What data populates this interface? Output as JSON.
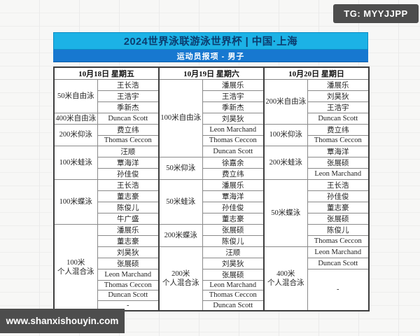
{
  "badge": {
    "text": "TG: MYYJJPP"
  },
  "watermark": {
    "text": "www.shanxishouyin.com"
  },
  "header": {
    "title": "2024世界泳联游泳世界杯 | 中国·上海",
    "subtitle": "运动员报项 - 男子"
  },
  "colors": {
    "title_bg": "#1cb2e6",
    "subtitle_bg": "#1778d0",
    "title_text": "#0c3c6e",
    "badge_bg": "#4d4d4d",
    "outer_border": "#3e3e3e",
    "cell_border": "#8a8a8a"
  },
  "table": {
    "days": [
      {
        "label": "10月18日 星期五",
        "events": [
          {
            "name": "50米自由泳",
            "swimmers": [
              {
                "name": "王长浩"
              },
              {
                "name": "王浩宇"
              },
              {
                "name": "季新杰"
              }
            ]
          },
          {
            "name": "400米自由泳",
            "swimmers": [
              {
                "name": "Duncan Scott"
              }
            ]
          },
          {
            "name": "200米仰泳",
            "swimmers": [
              {
                "name": "费立纬"
              },
              {
                "name": "Thomas Ceccon"
              }
            ]
          },
          {
            "name": "100米蛙泳",
            "swimmers": [
              {
                "name": "汪顺"
              },
              {
                "name": "覃海洋"
              },
              {
                "name": "孙佳俊"
              }
            ]
          },
          {
            "name": "100米蝶泳",
            "swimmers": [
              {
                "name": "王长浩"
              },
              {
                "name": "董志豪"
              },
              {
                "name": "陈俊儿"
              },
              {
                "name": "牛广盛"
              }
            ]
          },
          {
            "name": "100米\n个人混合泳",
            "swimmers": [
              {
                "name": "潘展乐"
              },
              {
                "name": "董志豪"
              },
              {
                "name": "刘昊狄"
              },
              {
                "name": "张展硕"
              },
              {
                "name": "Leon Marchand"
              },
              {
                "name": "Thomas Ceccon"
              },
              {
                "name": "Duncan Scott"
              },
              {
                "name": "-"
              }
            ]
          }
        ]
      },
      {
        "label": "10月19日 星期六",
        "events": [
          {
            "name": "100米自由泳",
            "swimmers": [
              {
                "name": "潘展乐"
              },
              {
                "name": "王浩宇"
              },
              {
                "name": "季新杰"
              },
              {
                "name": "刘昊狄"
              },
              {
                "name": "Leon Marchand"
              },
              {
                "name": "Thomas Ceccon"
              },
              {
                "name": "Duncan Scott"
              }
            ]
          },
          {
            "name": "50米仰泳",
            "swimmers": [
              {
                "name": "徐嘉余"
              },
              {
                "name": "费立纬"
              }
            ]
          },
          {
            "name": "50米蛙泳",
            "swimmers": [
              {
                "name": "潘展乐"
              },
              {
                "name": "覃海洋"
              },
              {
                "name": "孙佳俊"
              },
              {
                "name": "董志豪"
              }
            ]
          },
          {
            "name": "200米蝶泳",
            "swimmers": [
              {
                "name": "张展硕"
              },
              {
                "name": "陈俊儿"
              }
            ]
          },
          {
            "name": "200米\n个人混合泳",
            "swimmers": [
              {
                "name": "汪顺"
              },
              {
                "name": "刘昊狄"
              },
              {
                "name": "张展硕"
              },
              {
                "name": "Leon Marchand"
              },
              {
                "name": "Thomas Ceccon"
              },
              {
                "name": "Duncan Scott"
              }
            ]
          }
        ]
      },
      {
        "label": "10月20日 星期日",
        "events": [
          {
            "name": "200米自由泳",
            "swimmers": [
              {
                "name": "潘展乐"
              },
              {
                "name": "刘昊狄"
              },
              {
                "name": "王浩宇"
              },
              {
                "name": "Duncan Scott"
              }
            ]
          },
          {
            "name": "100米仰泳",
            "swimmers": [
              {
                "name": "费立纬"
              },
              {
                "name": "Thomas Ceccon"
              }
            ]
          },
          {
            "name": "200米蛙泳",
            "swimmers": [
              {
                "name": "覃海洋"
              },
              {
                "name": "张展硕"
              },
              {
                "name": "Leon Marchand"
              }
            ]
          },
          {
            "name": "50米蝶泳",
            "swimmers": [
              {
                "name": "王长浩"
              },
              {
                "name": "孙佳俊"
              },
              {
                "name": "董志豪"
              },
              {
                "name": "张展硕"
              },
              {
                "name": "陈俊儿"
              },
              {
                "name": "Thomas Ceccon"
              }
            ]
          },
          {
            "name": "400米\n个人混合泳",
            "swimmers": [
              {
                "name": "Leon Marchand"
              },
              {
                "name": "Duncan Scott"
              },
              {
                "name": "-",
                "rows": 4
              }
            ]
          }
        ]
      }
    ]
  }
}
